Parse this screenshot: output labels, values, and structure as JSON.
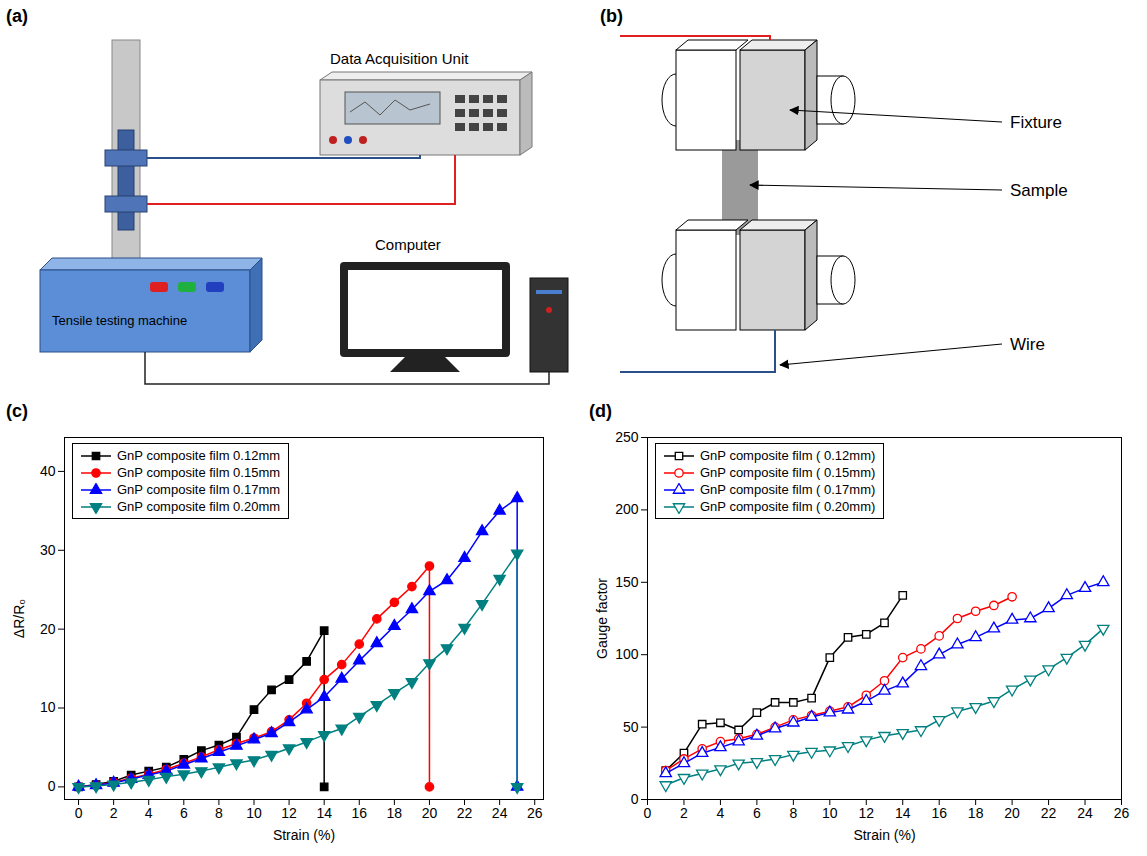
{
  "chart_data": [
    {
      "panel": "(c)",
      "type": "line",
      "xlabel": "Strain (%)",
      "ylabel": "ΔR/R₀",
      "xlim": [
        -0.8,
        26.5
      ],
      "xticks": [
        0,
        2,
        4,
        6,
        8,
        10,
        12,
        14,
        16,
        18,
        20,
        22,
        24,
        26
      ],
      "ylim": [
        -1.6,
        44.3
      ],
      "yticks": [
        0,
        10,
        20,
        30,
        40
      ],
      "grid": false,
      "legend": "upper left",
      "series": [
        {
          "name": "GnP composite film 0.12mm",
          "color": "#000000",
          "marker": "square",
          "x": [
            0,
            1,
            2,
            3,
            4,
            5,
            6,
            7,
            8,
            9,
            10,
            11,
            12,
            13,
            14,
            14
          ],
          "values": [
            0,
            0.3,
            0.7,
            1.5,
            2,
            2.5,
            3.5,
            4.6,
            5.3,
            6.3,
            9.8,
            12.3,
            13.6,
            15.9,
            19.8,
            0
          ]
        },
        {
          "name": "GnP composite film 0.15mm",
          "color": "#ff0000",
          "marker": "circle",
          "x": [
            0,
            1,
            2,
            3,
            4,
            5,
            6,
            7,
            8,
            9,
            10,
            11,
            12,
            13,
            14,
            15,
            16,
            17,
            18,
            19,
            20,
            20
          ],
          "values": [
            0,
            0.2,
            0.6,
            1.1,
            1.6,
            2.2,
            3,
            3.8,
            4.7,
            5.5,
            6.2,
            7,
            8.5,
            10.6,
            13.6,
            15.5,
            18.1,
            21.3,
            23.4,
            25.4,
            28,
            0
          ]
        },
        {
          "name": "GnP composite film 0.17mm",
          "color": "#0000ff",
          "marker": "triangle",
          "x": [
            0,
            1,
            2,
            3,
            4,
            5,
            6,
            7,
            8,
            9,
            10,
            11,
            12,
            13,
            14,
            15,
            16,
            17,
            18,
            19,
            20,
            21,
            22,
            23,
            24,
            25,
            25
          ],
          "values": [
            0,
            0.2,
            0.5,
            1,
            1.5,
            2,
            2.8,
            3.6,
            4.4,
            5.2,
            6,
            6.8,
            8.2,
            9.8,
            11.4,
            13.7,
            16,
            18.2,
            20.4,
            22.5,
            24.8,
            26.2,
            29,
            32.4,
            35,
            36.6,
            0
          ]
        },
        {
          "name": "GnP composite film 0.20mm",
          "color": "#008080",
          "marker": "triangle-down",
          "x": [
            0,
            1,
            2,
            3,
            4,
            5,
            6,
            7,
            8,
            9,
            10,
            11,
            12,
            13,
            14,
            15,
            16,
            17,
            18,
            19,
            20,
            21,
            22,
            23,
            24,
            25,
            25
          ],
          "values": [
            0,
            0.1,
            0.3,
            0.6,
            0.9,
            1.3,
            1.6,
            2,
            2.5,
            3,
            3.4,
            4.1,
            4.9,
            5.7,
            6.6,
            7.4,
            8.9,
            10.4,
            11.9,
            13.3,
            15.7,
            17.6,
            20.2,
            23.2,
            26.4,
            29.6,
            0
          ]
        }
      ]
    },
    {
      "panel": "(d)",
      "type": "line",
      "xlabel": "Strain (%)",
      "ylabel": "Gauge factor",
      "xlim": [
        0,
        26
      ],
      "xticks": [
        0,
        2,
        4,
        6,
        8,
        10,
        12,
        14,
        16,
        18,
        20,
        22,
        24,
        26
      ],
      "ylim": [
        0,
        250
      ],
      "yticks": [
        0,
        50,
        100,
        150,
        200,
        250
      ],
      "grid": false,
      "legend": "upper left",
      "series": [
        {
          "name": "GnP composite film ( 0.12mm)",
          "color": "#000000",
          "marker": "open-square",
          "x": [
            1,
            2,
            3,
            4,
            5,
            6,
            7,
            8,
            9,
            10,
            11,
            12,
            13,
            14
          ],
          "values": [
            20,
            32,
            52,
            53,
            48,
            60,
            67,
            67,
            70,
            98,
            112,
            114,
            122,
            141
          ]
        },
        {
          "name": "GnP composite film ( 0.15mm)",
          "color": "#ff0000",
          "marker": "open-circle",
          "x": [
            1,
            2,
            3,
            4,
            5,
            6,
            7,
            8,
            9,
            10,
            11,
            12,
            13,
            14,
            15,
            16,
            17,
            18,
            19,
            20
          ],
          "values": [
            20,
            28,
            35,
            40,
            42,
            45,
            50,
            55,
            58,
            61,
            64,
            72,
            82,
            98,
            104,
            113,
            125,
            130,
            134,
            140
          ]
        },
        {
          "name": "GnP composite film ( 0.17mm)",
          "color": "#0000ff",
          "marker": "open-triangle",
          "x": [
            1,
            2,
            3,
            4,
            5,
            6,
            7,
            8,
            9,
            10,
            11,
            12,
            13,
            14,
            15,
            16,
            17,
            18,
            19,
            20,
            21,
            22,
            23,
            24,
            25
          ],
          "values": [
            18,
            25,
            32,
            36,
            40,
            44,
            49,
            53,
            57,
            60,
            62,
            68,
            75,
            80,
            92,
            100,
            107,
            112,
            118,
            124,
            125,
            132,
            141,
            146,
            150
          ]
        },
        {
          "name": "GnP composite film ( 0.20mm)",
          "color": "#008080",
          "marker": "open-triangle-down",
          "x": [
            1,
            2,
            3,
            4,
            5,
            6,
            7,
            8,
            9,
            10,
            11,
            12,
            13,
            14,
            15,
            16,
            17,
            18,
            19,
            20,
            21,
            22,
            23,
            24,
            25
          ],
          "values": [
            10,
            15,
            18,
            21,
            25,
            26,
            28,
            31,
            33,
            34,
            37,
            41,
            44,
            46,
            48,
            55,
            61,
            64,
            68,
            76,
            83,
            90,
            98,
            107,
            118
          ]
        }
      ]
    }
  ],
  "diagrams": [
    {
      "panel": "(a)",
      "labels": {
        "daq": "Data Acquisition Unit",
        "machine": "Tensile testing machine",
        "computer": "Computer"
      }
    },
    {
      "panel": "(b)",
      "labels": {
        "fixture": "Fixture",
        "sample": "Sample",
        "wire": "Wire"
      }
    }
  ]
}
